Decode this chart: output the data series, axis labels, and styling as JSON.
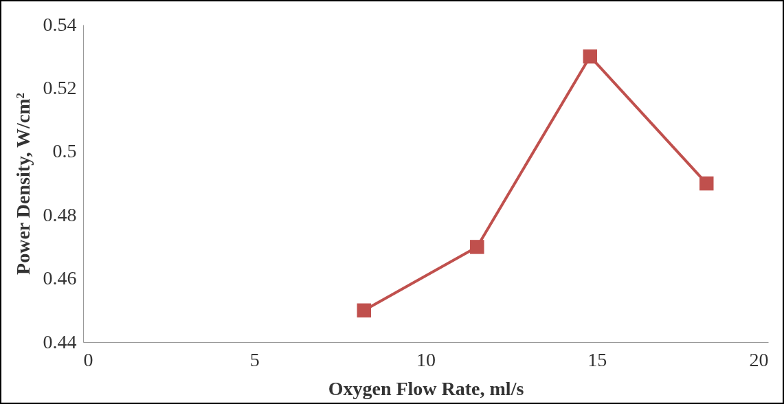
{
  "chart_data": {
    "type": "line",
    "xlabel": "Oxygen Flow Rate, ml/s",
    "ylabel": "Power Density, W/cm²",
    "x": [
      8.2,
      11.5,
      14.8,
      18.2
    ],
    "series": [
      {
        "color": "#c0504d",
        "values": [
          0.45,
          0.47,
          0.53,
          0.49
        ]
      }
    ],
    "xlim": [
      0,
      20
    ],
    "xticks": [
      0,
      5,
      10,
      15,
      20
    ],
    "ylim": [
      0.44,
      0.54
    ],
    "yticks": [
      0.44,
      0.46,
      0.48,
      0.5,
      0.52,
      0.54
    ],
    "grid": false,
    "marker": "square",
    "line_style": "solid"
  }
}
